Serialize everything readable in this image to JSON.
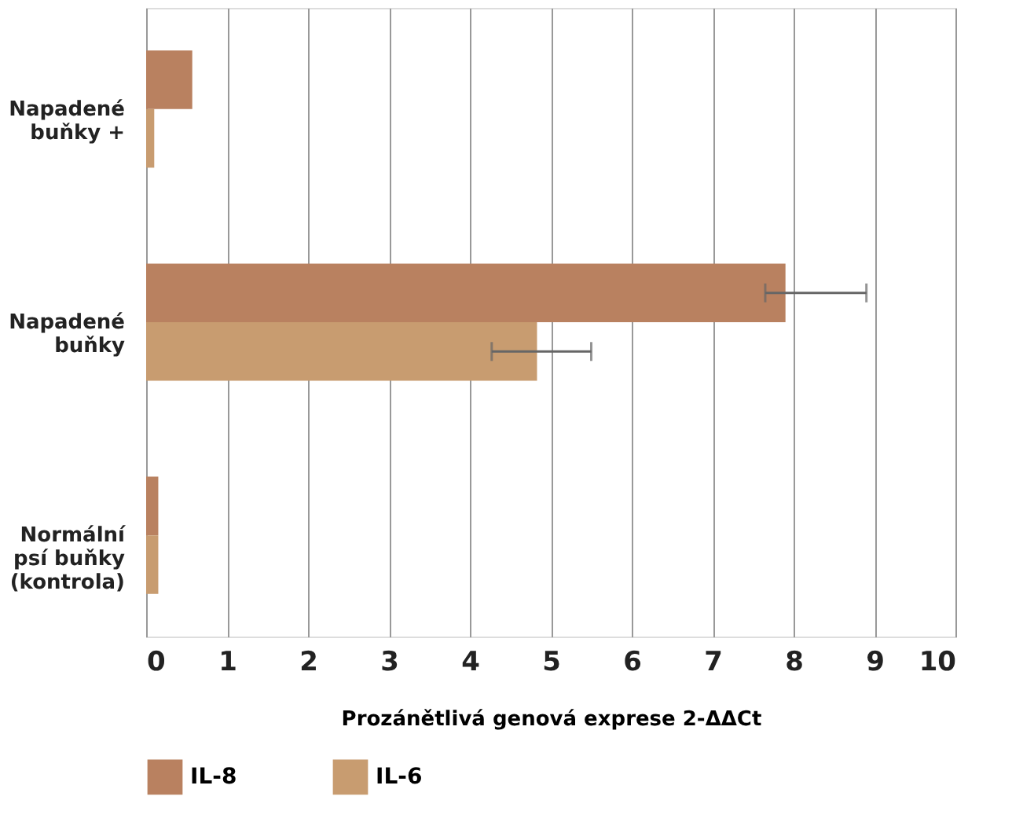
{
  "chart_data": {
    "type": "bar",
    "orientation": "horizontal",
    "categories": [
      "Napadené\nbuňky +",
      "Napadené\nbuňky",
      "Normální\npsí buňky\n(kontrola)"
    ],
    "series": [
      {
        "name": "IL-8",
        "color": "#b98160",
        "values": [
          0.57,
          7.9,
          0.15
        ],
        "errors": [
          null,
          [
            7.65,
            8.9
          ],
          null
        ]
      },
      {
        "name": "IL-6",
        "color": "#c89c70",
        "values": [
          0.1,
          4.83,
          0.15
        ],
        "errors": [
          null,
          [
            4.27,
            5.5
          ],
          null
        ]
      }
    ],
    "xlabel": "Prozánětlivá genová exprese 2-ΔΔCt",
    "xlim": [
      0,
      10
    ],
    "xticks": [
      0,
      1,
      2,
      3,
      4,
      5,
      6,
      7,
      8,
      9,
      10
    ],
    "grid": "x",
    "legend": "bottom"
  }
}
